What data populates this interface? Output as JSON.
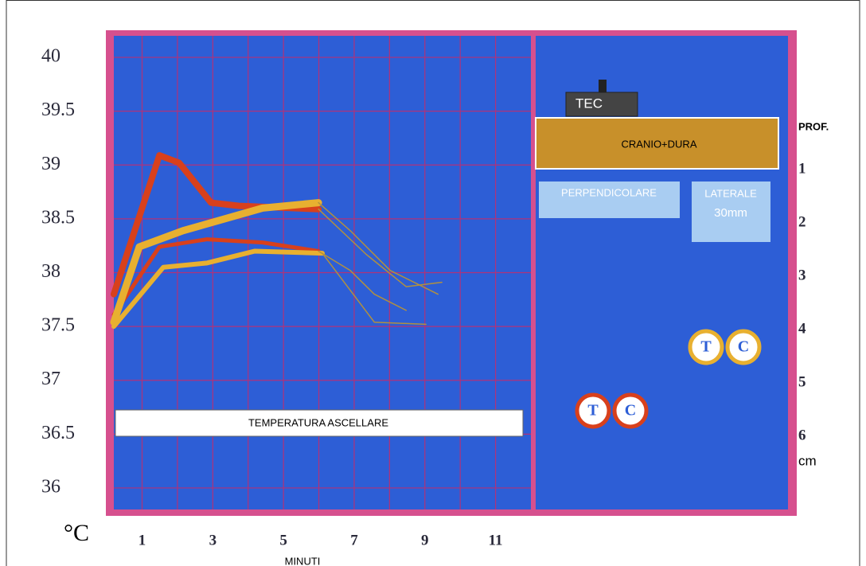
{
  "chart_data": {
    "type": "line",
    "xlabel": "MINUTI",
    "ylabel": "°C",
    "annotation": "TEMPERATURA ASCELLARE",
    "xlim": [
      0.2,
      12
    ],
    "xticks": [
      1,
      3,
      5,
      7,
      9,
      11
    ],
    "ylim": [
      35.8,
      40.2
    ],
    "yticks": [
      36,
      36.5,
      37,
      37.5,
      38,
      38.5,
      39,
      39.5,
      40
    ],
    "grid": true,
    "series": [
      {
        "color": "#d8401c",
        "x": [
          0.2,
          1.49,
          2.05,
          2.95,
          3.74,
          5.99
        ],
        "values": [
          37.8,
          39.09,
          39.02,
          38.65,
          38.62,
          38.59
        ]
      },
      {
        "color": "#d8401c",
        "x": [
          0.2,
          1.49,
          2.84,
          4.41,
          5.99
        ],
        "values": [
          37.61,
          38.24,
          38.31,
          38.28,
          38.2
        ]
      },
      {
        "color": "#e8b030",
        "x": [
          0.2,
          0.92,
          2.16,
          4.41,
          5.99
        ],
        "values": [
          37.54,
          38.24,
          38.39,
          38.6,
          38.65
        ]
      },
      {
        "color": "#e8b030",
        "x": [
          0.2,
          1.6,
          2.84,
          4.19,
          6.1
        ],
        "values": [
          37.5,
          38.05,
          38.09,
          38.2,
          38.18
        ]
      },
      {
        "color": "#b09040",
        "x": [
          5.99,
          6.89,
          8.02,
          9.37
        ],
        "values": [
          38.65,
          38.39,
          38.02,
          37.8
        ]
      },
      {
        "color": "#b09040",
        "x": [
          5.99,
          7.34,
          8.47,
          9.48
        ],
        "values": [
          38.59,
          38.17,
          37.87,
          37.91
        ]
      },
      {
        "color": "#b09040",
        "x": [
          6.1,
          7.57,
          9.03
        ],
        "values": [
          38.18,
          37.54,
          37.52
        ]
      },
      {
        "color": "#b09040",
        "x": [
          5.99,
          6.89,
          7.57,
          8.47
        ],
        "values": [
          38.2,
          38.02,
          37.8,
          37.65
        ]
      }
    ]
  },
  "diagram": {
    "probe": "TEC",
    "layer": "CRANIO+DURA",
    "perpendicular": "PERPENDICOLARE",
    "lateral": [
      "LATERALE",
      "30mm"
    ],
    "depth_title": "Prof.",
    "depths": [
      "1",
      "2",
      "3",
      "4",
      "5",
      "6"
    ],
    "depth_unit": "cm",
    "markers": [
      "T",
      "C"
    ]
  }
}
